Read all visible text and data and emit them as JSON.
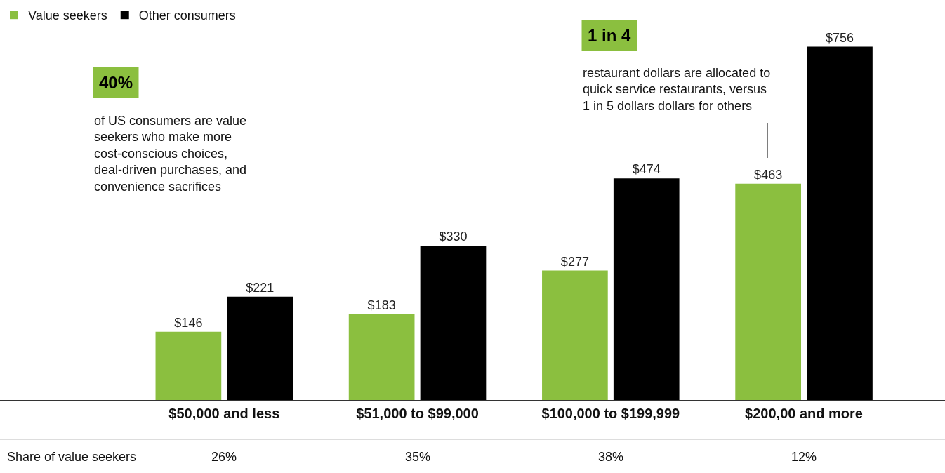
{
  "chart_data": {
    "type": "bar",
    "categories": [
      "$50,000 and less",
      "$51,000 to $99,000",
      "$100,000 to $199,999",
      "$200,00 and more"
    ],
    "series": [
      {
        "name": "Value seekers",
        "color": "#8bbf3f",
        "values": [
          146,
          183,
          277,
          463
        ],
        "value_labels": [
          "$146",
          "$183",
          "$277",
          "$463"
        ]
      },
      {
        "name": "Other consumers",
        "color": "#000000",
        "values": [
          221,
          330,
          474,
          756
        ],
        "value_labels": [
          "$221",
          "$330",
          "$474",
          "$756"
        ]
      }
    ],
    "tick_labels": "x",
    "legend": "top left",
    "annotations": [
      "40%",
      "of US consumers are value\nseekers who make more\ncost-conscious choices,\ndeal-driven purchases, and\nconvenience sacrifices",
      "1 in 4",
      "restaurant dollars are allocated to\nquick service restaurants, versus\n1 in 5 dollars dollars for others",
      "Share of value seekers",
      "26%",
      "35%",
      "38%",
      "12%"
    ]
  }
}
